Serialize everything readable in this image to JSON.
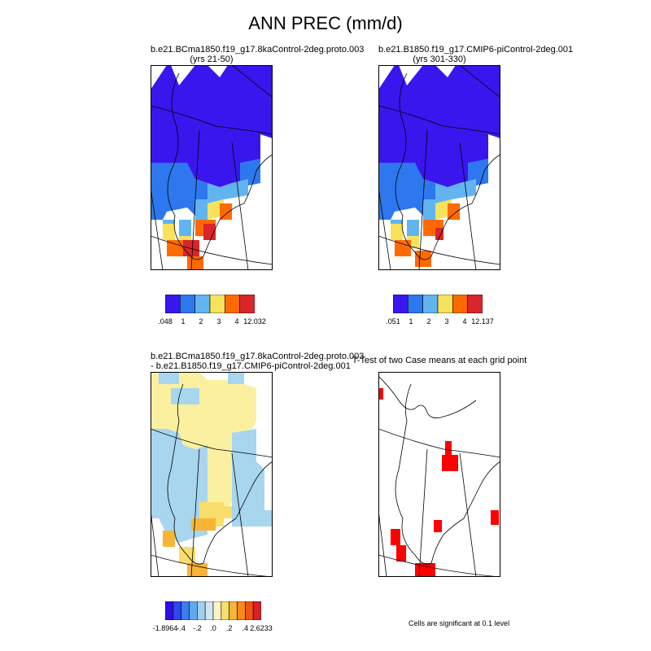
{
  "figure": {
    "title": "ANN PREC (mm/d)"
  },
  "panels": {
    "p1": {
      "title": "b.e21.BCma1850.f19_g17.8kaControl-2deg.proto.003",
      "subtitle": "(yrs 21-50)"
    },
    "p2": {
      "title": "b.e21.B1850.f19_g17.CMIP6-piControl-2deg.001",
      "subtitle": "(yrs 301-330)"
    },
    "p3": {
      "title": "b.e21.BCma1850.f19_g17.8kaControl-2deg.proto.003",
      "subtitle": "- b.e21.B1850.f19_g17.CMIP6-piControl-2deg.001"
    },
    "p4": {
      "title": "T-Test of two Case means at each grid point",
      "note": "Cells are significant at 0.1 level"
    }
  },
  "colorbars": {
    "cb1": {
      "colors": [
        "#3a16ee",
        "#2d78ee",
        "#62b4f0",
        "#f6e25c",
        "#ff6a00",
        "#d8262a"
      ],
      "labels": [
        ".048",
        "1",
        "2",
        "3",
        "4",
        "12.032"
      ]
    },
    "cb2": {
      "colors": [
        "#3a16ee",
        "#2d78ee",
        "#62b4f0",
        "#f6e25c",
        "#ff6a00",
        "#d8262a"
      ],
      "labels": [
        ".051",
        "1",
        "2",
        "3",
        "4",
        "12.137"
      ]
    },
    "cb3": {
      "colors": [
        "#2c0fe6",
        "#2f47ef",
        "#3d7bf0",
        "#60a8f0",
        "#a1d0ec",
        "#cfe6f1",
        "#fbf4c4",
        "#f8de6a",
        "#f8b535",
        "#f88a15",
        "#ef5512",
        "#d8202a"
      ],
      "labels": [
        "-1.8964",
        "-.4",
        "-.2",
        ".0",
        ".2",
        ".4",
        "2.6233"
      ]
    }
  },
  "legend_colors": {
    "precip_blue_dark": "#3a16ee",
    "precip_blue": "#2d78ee",
    "precip_lightblue": "#62b4f0",
    "precip_yellow": "#f6e25c",
    "precip_orange": "#ff6a00",
    "precip_red": "#d8262a",
    "diff_lightblue": "#a8d6ee",
    "diff_yellow": "#fbf0a0",
    "diff_orange": "#f8b535",
    "significant": "#ff0000"
  }
}
